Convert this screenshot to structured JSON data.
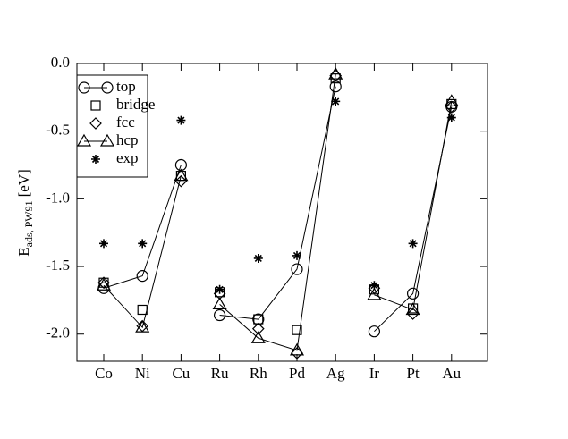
{
  "chart_data": {
    "type": "line",
    "ylabel": {
      "main": "E",
      "sub": "ads, PW91",
      "unit": "[eV]"
    },
    "categories": [
      "Co",
      "Ni",
      "Cu",
      "Ru",
      "Rh",
      "Pd",
      "Ag",
      "Ir",
      "Pt",
      "Au"
    ],
    "line_breaks_after": [
      2,
      6
    ],
    "series": [
      {
        "name": "top",
        "color": "#000000",
        "marker": "circle",
        "line": true,
        "values": [
          -1.66,
          -1.57,
          -0.75,
          -1.86,
          -1.89,
          -1.52,
          -0.17,
          -1.98,
          -1.7,
          -0.32
        ]
      },
      {
        "name": "bridge",
        "color": "#000000",
        "marker": "square",
        "line": false,
        "values": [
          -1.62,
          -1.82,
          -0.83,
          -1.69,
          -1.89,
          -1.97,
          -0.11,
          -1.67,
          -1.81,
          -0.3
        ]
      },
      {
        "name": "fcc",
        "color": "#000000",
        "marker": "diamond",
        "line": false,
        "values": [
          -1.62,
          -1.94,
          -0.87,
          -1.7,
          -1.96,
          -2.14,
          -0.09,
          -1.66,
          -1.85,
          -0.32
        ]
      },
      {
        "name": "hcp",
        "color": "#000000",
        "marker": "triangle",
        "line": true,
        "values": [
          -1.64,
          -1.95,
          -0.83,
          -1.78,
          -2.03,
          -2.12,
          -0.08,
          -1.71,
          -1.82,
          -0.28
        ]
      },
      {
        "name": "exp",
        "color": "#000000",
        "marker": "star",
        "line": false,
        "values": [
          -1.33,
          -1.33,
          -0.42,
          -1.67,
          -1.44,
          -1.42,
          -0.28,
          -1.64,
          -1.33,
          -0.4
        ]
      }
    ],
    "ylim": [
      -2.2,
      0
    ],
    "yticks": [
      {
        "value": 0,
        "label": "0.0"
      },
      -0.5,
      {
        "value": -1,
        "label": "-1.0"
      },
      -1.5,
      {
        "value": -2,
        "label": "-2.0"
      }
    ],
    "legend": "upper left",
    "grid": false
  }
}
